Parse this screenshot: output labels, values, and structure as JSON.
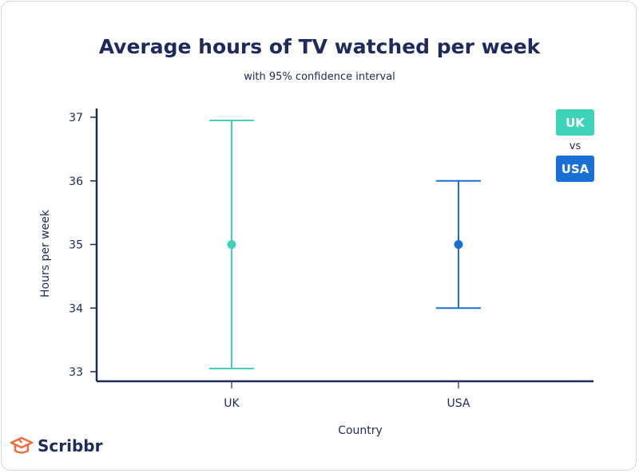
{
  "chart_data": {
    "type": "errorbar",
    "title": "Average hours of TV watched per week",
    "subtitle": "with 95% confidence interval",
    "xlabel": "Country",
    "ylabel": "Hours per week",
    "ylim": [
      33,
      37
    ],
    "yticks": [
      33,
      34,
      35,
      36,
      37
    ],
    "categories": [
      "UK",
      "USA"
    ],
    "points": [
      {
        "category": "UK",
        "mean": 35,
        "ci_low": 33.05,
        "ci_high": 36.95,
        "color": "#3ed3b8"
      },
      {
        "category": "USA",
        "mean": 35,
        "ci_low": 34.0,
        "ci_high": 36.0,
        "color": "#1a6fd6"
      }
    ],
    "legend": {
      "items": [
        "UK",
        "USA"
      ],
      "separator": "vs",
      "placement": "top-right"
    },
    "grid": false
  },
  "brand": {
    "name": "Scribbr",
    "color": "#f26b3a"
  }
}
